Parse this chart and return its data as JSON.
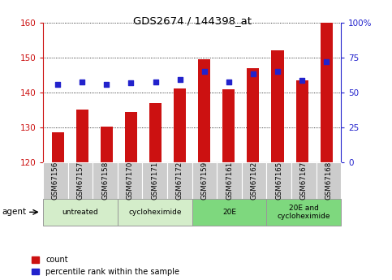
{
  "title": "GDS2674 / 144398_at",
  "categories": [
    "GSM67156",
    "GSM67157",
    "GSM67158",
    "GSM67170",
    "GSM67171",
    "GSM67172",
    "GSM67159",
    "GSM67161",
    "GSM67162",
    "GSM67165",
    "GSM67167",
    "GSM67168"
  ],
  "bar_values": [
    128.5,
    135.2,
    130.3,
    134.5,
    137.0,
    141.2,
    149.5,
    141.0,
    147.0,
    152.0,
    143.5,
    160.0
  ],
  "percentile_values": [
    55.5,
    57.5,
    56.0,
    57.0,
    57.5,
    59.0,
    65.0,
    57.5,
    63.5,
    65.0,
    58.5,
    72.0
  ],
  "bar_color": "#cc1111",
  "dot_color": "#2222cc",
  "ylim_left": [
    120,
    160
  ],
  "ylim_right": [
    0,
    100
  ],
  "yticks_left": [
    120,
    130,
    140,
    150,
    160
  ],
  "yticks_right": [
    0,
    25,
    50,
    75,
    100
  ],
  "ytick_labels_right": [
    "0",
    "25",
    "50",
    "75",
    "100%"
  ],
  "groups": [
    {
      "label": "untreated",
      "start": 0,
      "end": 3,
      "color": "#d4edca"
    },
    {
      "label": "cycloheximide",
      "start": 3,
      "end": 6,
      "color": "#d4edca"
    },
    {
      "label": "20E",
      "start": 6,
      "end": 9,
      "color": "#7ed87e"
    },
    {
      "label": "20E and\ncycloheximide",
      "start": 9,
      "end": 12,
      "color": "#7ed87e"
    }
  ],
  "agent_label": "agent",
  "legend_count_label": "count",
  "legend_percentile_label": "percentile rank within the sample",
  "bar_color_left": "#cc1111",
  "ylabel_right_color": "#2222cc",
  "background_color": "#ffffff",
  "grid_color": "#000000",
  "tickbox_color": "#cccccc"
}
